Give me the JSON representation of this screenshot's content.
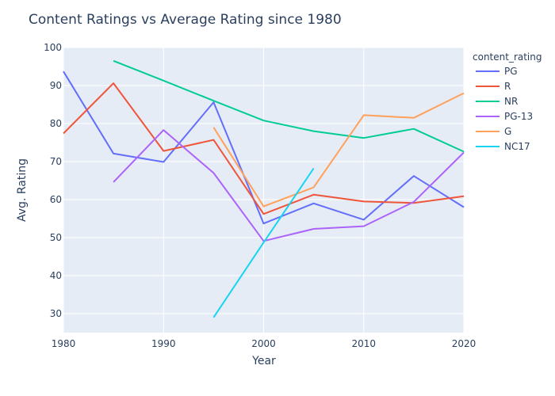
{
  "chart_data": {
    "type": "line",
    "title": "Content Ratings vs Average Rating since 1980",
    "xlabel": "Year",
    "ylabel": "Avg. Rating",
    "xlim": [
      1980,
      2020
    ],
    "ylim": [
      25,
      100
    ],
    "xticks": [
      1980,
      1990,
      2000,
      2010,
      2020
    ],
    "yticks": [
      30,
      40,
      50,
      60,
      70,
      80,
      90,
      100
    ],
    "grid": true,
    "legend_title": "content_rating",
    "legend_position": "right",
    "background": "#e5ecf6",
    "series": [
      {
        "name": "PG",
        "color": "#636efa",
        "x": [
          1980,
          1985,
          1990,
          1995,
          2000,
          2005,
          2010,
          2015,
          2020
        ],
        "y": [
          93.7,
          72.1,
          69.9,
          85.6,
          53.7,
          59.0,
          54.7,
          66.2,
          58.0
        ]
      },
      {
        "name": "R",
        "color": "#ef553b",
        "x": [
          1980,
          1985,
          1990,
          1995,
          2000,
          2005,
          2010,
          2015,
          2020
        ],
        "y": [
          77.4,
          90.6,
          72.8,
          75.7,
          56.2,
          61.3,
          59.5,
          59.1,
          60.9
        ]
      },
      {
        "name": "NR",
        "color": "#00cc96",
        "x": [
          1985,
          1990,
          1995,
          2000,
          2005,
          2010,
          2015,
          2020
        ],
        "y": [
          96.5,
          91.3,
          86.0,
          80.8,
          78.0,
          76.2,
          78.6,
          72.6
        ]
      },
      {
        "name": "PG-13",
        "color": "#ab63fa",
        "x": [
          1985,
          1990,
          1995,
          2000,
          2005,
          2010,
          2015,
          2020
        ],
        "y": [
          64.6,
          78.3,
          67.0,
          49.1,
          52.3,
          53.0,
          59.4,
          72.4
        ]
      },
      {
        "name": "G",
        "color": "#ffa15a",
        "x": [
          1995,
          2000,
          2005,
          2010,
          2015,
          2020
        ],
        "y": [
          79.0,
          58.2,
          63.2,
          82.2,
          81.5,
          88.0
        ]
      },
      {
        "name": "NC17",
        "color": "#19d3f3",
        "x": [
          1995,
          2000,
          2005
        ],
        "y": [
          29.0,
          48.7,
          68.2
        ]
      }
    ]
  }
}
